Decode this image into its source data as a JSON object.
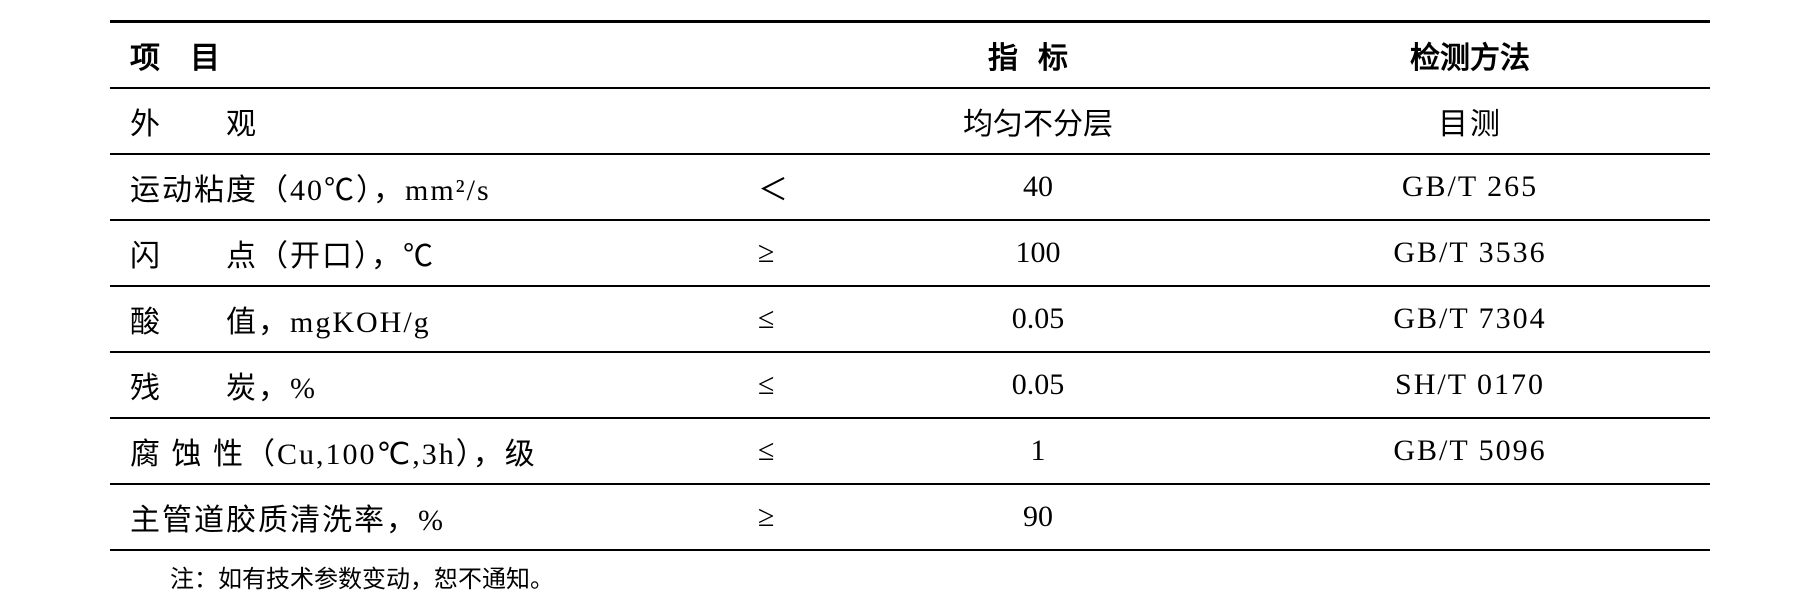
{
  "table": {
    "headers": {
      "item": "项目",
      "index": "指标",
      "method": "检测方法"
    },
    "rows": [
      {
        "item": "外　　观",
        "operator": "",
        "index": "均匀不分层",
        "method": "目测"
      },
      {
        "item": "运动粘度（40℃），mm²/s",
        "operator": "＜",
        "index": "40",
        "method": "GB/T 265"
      },
      {
        "item": "闪　　点（开口），℃",
        "operator": "≥",
        "index": "100",
        "method": "GB/T 3536"
      },
      {
        "item": "酸　　值，mgKOH/g",
        "operator": "≤",
        "index": "0.05",
        "method": "GB/T 7304"
      },
      {
        "item": "残　　炭，%",
        "operator": "≤",
        "index": "0.05",
        "method": "SH/T 0170"
      },
      {
        "item": "腐 蚀 性（Cu,100℃,3h），级",
        "operator": "≤",
        "index": "1",
        "method": "GB/T 5096"
      },
      {
        "item": "主管道胶质清洗率，%",
        "operator": "≥",
        "index": "90",
        "method": ""
      }
    ],
    "footnote": "注：如有技术参数变动，恕不通知。"
  },
  "styling": {
    "border_color": "#000000",
    "text_color": "#000000",
    "background_color": "#ffffff",
    "header_border_top_width": 3,
    "row_border_width": 2,
    "font_size_body": 30,
    "font_size_footnote": 24,
    "font_family": "SimSun"
  }
}
